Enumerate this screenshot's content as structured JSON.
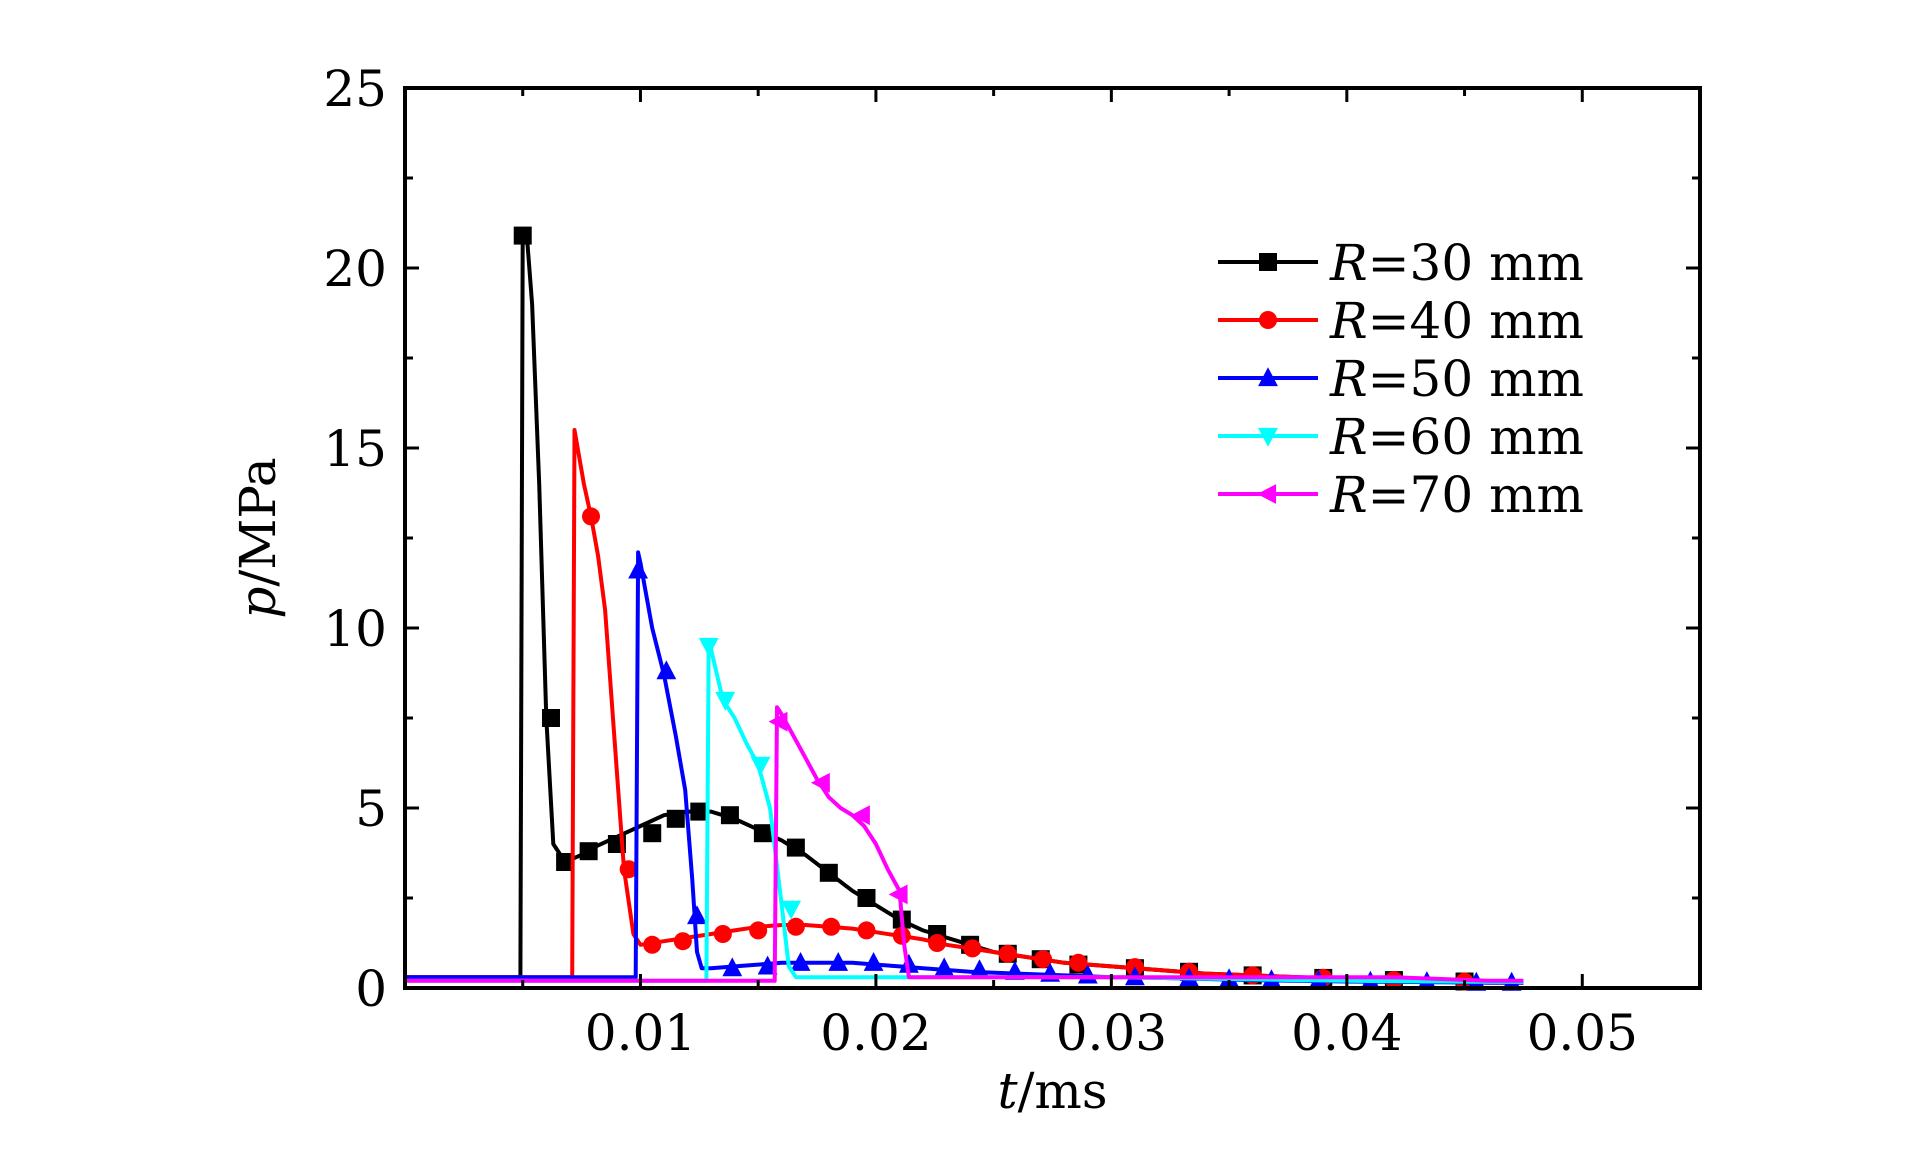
{
  "chart_data": {
    "type": "line",
    "xlabel": {
      "var": "t",
      "unit": "/ms"
    },
    "ylabel": {
      "var": "p",
      "unit": "/MPa"
    },
    "xlim": [
      0,
      0.055
    ],
    "ylim": [
      0,
      25
    ],
    "xticks": [
      0.01,
      0.02,
      0.03,
      0.04,
      0.05
    ],
    "xtick_labels": [
      "0.01",
      "0.02",
      "0.03",
      "0.04",
      "0.05"
    ],
    "yticks": [
      0,
      5,
      10,
      15,
      20,
      25
    ],
    "ytick_labels": [
      "0",
      "5",
      "10",
      "15",
      "20",
      "25"
    ],
    "grid": false,
    "legend_position": "top-right",
    "series": [
      {
        "name": "R=30 mm",
        "label_var": "R",
        "label_rest": "=30 mm",
        "color": "#000000",
        "marker": "square",
        "x": [
          0,
          0.0049,
          0.005,
          0.0052,
          0.0054,
          0.0057,
          0.006,
          0.0063,
          0.0068,
          0.0075,
          0.008,
          0.009,
          0.01,
          0.011,
          0.012,
          0.013,
          0.014,
          0.015,
          0.016,
          0.017,
          0.018,
          0.019,
          0.02,
          0.021,
          0.022,
          0.023,
          0.024,
          0.025,
          0.026,
          0.027,
          0.028,
          0.03,
          0.032,
          0.034,
          0.036,
          0.038,
          0.04,
          0.042,
          0.044,
          0.046,
          0.0475
        ],
        "y": [
          0.3,
          0.3,
          20.9,
          20.7,
          19.0,
          14.0,
          7.5,
          4.0,
          3.5,
          3.7,
          3.9,
          4.2,
          4.5,
          4.8,
          4.9,
          4.9,
          4.7,
          4.4,
          4.1,
          3.7,
          3.2,
          2.7,
          2.3,
          1.9,
          1.6,
          1.4,
          1.2,
          1.0,
          0.9,
          0.8,
          0.7,
          0.6,
          0.5,
          0.4,
          0.35,
          0.3,
          0.25,
          0.2,
          0.18,
          0.15,
          0.15
        ],
        "markers": [
          [
            0.005,
            20.9
          ],
          [
            0.0062,
            7.5
          ],
          [
            0.0068,
            3.5
          ],
          [
            0.0078,
            3.8
          ],
          [
            0.009,
            4.0
          ],
          [
            0.0105,
            4.3
          ],
          [
            0.0115,
            4.7
          ],
          [
            0.0125,
            4.9
          ],
          [
            0.0138,
            4.8
          ],
          [
            0.0152,
            4.3
          ],
          [
            0.0166,
            3.9
          ],
          [
            0.018,
            3.2
          ],
          [
            0.0196,
            2.5
          ],
          [
            0.0211,
            1.9
          ],
          [
            0.0226,
            1.5
          ],
          [
            0.024,
            1.2
          ],
          [
            0.0256,
            0.95
          ],
          [
            0.027,
            0.8
          ],
          [
            0.0286,
            0.65
          ],
          [
            0.031,
            0.55
          ],
          [
            0.0333,
            0.45
          ],
          [
            0.036,
            0.35
          ],
          [
            0.039,
            0.28
          ],
          [
            0.042,
            0.22
          ],
          [
            0.045,
            0.18
          ]
        ]
      },
      {
        "name": "R=40 mm",
        "label_var": "R",
        "label_rest": "=40 mm",
        "color": "#ff0000",
        "marker": "circle",
        "x": [
          0,
          0.0071,
          0.0072,
          0.0076,
          0.0079,
          0.0082,
          0.0085,
          0.009,
          0.0093,
          0.0097,
          0.01,
          0.011,
          0.012,
          0.013,
          0.014,
          0.015,
          0.016,
          0.017,
          0.018,
          0.019,
          0.02,
          0.021,
          0.022,
          0.023,
          0.024,
          0.025,
          0.026,
          0.027,
          0.028,
          0.03,
          0.032,
          0.034,
          0.036,
          0.038,
          0.04,
          0.042,
          0.044,
          0.046,
          0.0475
        ],
        "y": [
          0.3,
          0.3,
          15.5,
          14.0,
          13.1,
          12.0,
          10.5,
          6.0,
          3.3,
          1.5,
          1.2,
          1.3,
          1.4,
          1.5,
          1.6,
          1.7,
          1.75,
          1.75,
          1.7,
          1.65,
          1.55,
          1.45,
          1.35,
          1.2,
          1.1,
          1.0,
          0.9,
          0.8,
          0.7,
          0.6,
          0.5,
          0.4,
          0.35,
          0.3,
          0.25,
          0.22,
          0.2,
          0.18,
          0.15
        ],
        "markers": [
          [
            0.0079,
            13.1
          ],
          [
            0.0095,
            3.3
          ],
          [
            0.0105,
            1.2
          ],
          [
            0.0118,
            1.3
          ],
          [
            0.0135,
            1.5
          ],
          [
            0.015,
            1.6
          ],
          [
            0.0166,
            1.7
          ],
          [
            0.0181,
            1.7
          ],
          [
            0.0196,
            1.6
          ],
          [
            0.0211,
            1.45
          ],
          [
            0.0226,
            1.25
          ],
          [
            0.0241,
            1.1
          ],
          [
            0.0256,
            0.95
          ],
          [
            0.0271,
            0.8
          ],
          [
            0.0286,
            0.7
          ],
          [
            0.031,
            0.58
          ],
          [
            0.0333,
            0.45
          ],
          [
            0.036,
            0.35
          ],
          [
            0.039,
            0.28
          ],
          [
            0.042,
            0.22
          ],
          [
            0.045,
            0.18
          ]
        ]
      },
      {
        "name": "R=50 mm",
        "label_var": "R",
        "label_rest": "=50 mm",
        "color": "#0000ff",
        "marker": "triangle-up",
        "x": [
          0,
          0.0098,
          0.0099,
          0.01,
          0.0105,
          0.011,
          0.0115,
          0.0119,
          0.0122,
          0.0124,
          0.0126,
          0.013,
          0.014,
          0.015,
          0.016,
          0.017,
          0.018,
          0.019,
          0.02,
          0.021,
          0.022,
          0.023,
          0.024,
          0.026,
          0.028,
          0.03,
          0.032,
          0.034,
          0.036,
          0.038,
          0.04,
          0.042,
          0.044,
          0.046,
          0.0475
        ],
        "y": [
          0.3,
          0.3,
          12.1,
          11.8,
          10.0,
          8.7,
          7.0,
          5.5,
          3.0,
          1.0,
          0.55,
          0.55,
          0.6,
          0.65,
          0.7,
          0.7,
          0.7,
          0.7,
          0.65,
          0.6,
          0.55,
          0.5,
          0.45,
          0.4,
          0.35,
          0.3,
          0.28,
          0.25,
          0.22,
          0.2,
          0.18,
          0.17,
          0.16,
          0.15,
          0.15
        ],
        "markers": [
          [
            0.0099,
            11.6
          ],
          [
            0.0111,
            8.8
          ],
          [
            0.0124,
            2.0
          ],
          [
            0.0139,
            0.55
          ],
          [
            0.0154,
            0.6
          ],
          [
            0.0168,
            0.7
          ],
          [
            0.0184,
            0.7
          ],
          [
            0.0199,
            0.7
          ],
          [
            0.0214,
            0.65
          ],
          [
            0.0229,
            0.55
          ],
          [
            0.0244,
            0.5
          ],
          [
            0.0259,
            0.45
          ],
          [
            0.0274,
            0.4
          ],
          [
            0.029,
            0.35
          ],
          [
            0.031,
            0.3
          ],
          [
            0.0333,
            0.27
          ],
          [
            0.035,
            0.25
          ],
          [
            0.0368,
            0.22
          ],
          [
            0.0388,
            0.2
          ],
          [
            0.041,
            0.18
          ],
          [
            0.0434,
            0.17
          ],
          [
            0.0455,
            0.15
          ],
          [
            0.047,
            0.15
          ]
        ]
      },
      {
        "name": "R=60 mm",
        "label_var": "R",
        "label_rest": "=60 mm",
        "color": "#00ffff",
        "marker": "triangle-down",
        "x": [
          0,
          0.0128,
          0.0129,
          0.013,
          0.0135,
          0.014,
          0.0145,
          0.015,
          0.0155,
          0.016,
          0.0163,
          0.0166,
          0.017,
          0.018,
          0.019,
          0.02,
          0.021,
          0.022,
          0.024,
          0.026,
          0.028,
          0.03,
          0.032,
          0.034,
          0.036,
          0.038,
          0.04,
          0.042,
          0.044,
          0.046,
          0.0475
        ],
        "y": [
          0.2,
          0.2,
          9.6,
          9.4,
          8.0,
          7.5,
          6.8,
          6.2,
          5.0,
          2.3,
          0.6,
          0.3,
          0.3,
          0.3,
          0.3,
          0.3,
          0.3,
          0.3,
          0.3,
          0.3,
          0.3,
          0.3,
          0.28,
          0.26,
          0.24,
          0.22,
          0.2,
          0.19,
          0.18,
          0.17,
          0.17
        ],
        "markers": [
          [
            0.0129,
            9.5
          ],
          [
            0.0136,
            8.0
          ],
          [
            0.0151,
            6.2
          ],
          [
            0.0164,
            2.2
          ]
        ]
      },
      {
        "name": "R=70 mm",
        "label_var": "R",
        "label_rest": "=70 mm",
        "color": "#ff00ff",
        "marker": "triangle-left",
        "x": [
          0,
          0.0157,
          0.0158,
          0.016,
          0.0165,
          0.017,
          0.0175,
          0.018,
          0.0185,
          0.019,
          0.0195,
          0.02,
          0.0205,
          0.021,
          0.0212,
          0.0214,
          0.022,
          0.024,
          0.026,
          0.028,
          0.03,
          0.032,
          0.034,
          0.036,
          0.038,
          0.04,
          0.042,
          0.044,
          0.046,
          0.0475
        ],
        "y": [
          0.2,
          0.2,
          7.8,
          7.6,
          7.0,
          6.4,
          5.8,
          5.3,
          5.0,
          4.8,
          4.5,
          4.0,
          3.3,
          2.7,
          1.2,
          0.3,
          0.3,
          0.3,
          0.3,
          0.3,
          0.3,
          0.3,
          0.3,
          0.3,
          0.3,
          0.3,
          0.3,
          0.25,
          0.2,
          0.2
        ],
        "markers": [
          [
            0.0159,
            7.4
          ],
          [
            0.0177,
            5.7
          ],
          [
            0.0194,
            4.8
          ],
          [
            0.021,
            2.6
          ]
        ]
      }
    ]
  }
}
